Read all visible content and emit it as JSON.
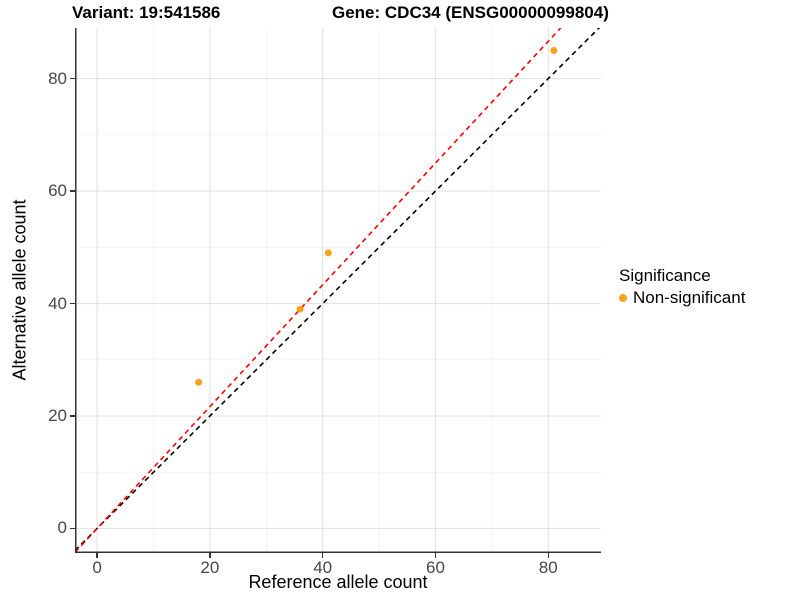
{
  "titles": {
    "variant": "Variant: 19:541586",
    "gene": "Gene: CDC34 (ENSG00000099804)"
  },
  "axes": {
    "x": {
      "label": "Reference allele count",
      "ticks": [
        "0",
        "20",
        "40",
        "60",
        "80"
      ],
      "tick_values": [
        0,
        20,
        40,
        60,
        80
      ],
      "minor": [
        10,
        30,
        50,
        70
      ]
    },
    "y": {
      "label": "Alternative allele count",
      "ticks": [
        "0",
        "20",
        "40",
        "60",
        "80"
      ],
      "tick_values": [
        0,
        20,
        40,
        60,
        80
      ],
      "minor": [
        10,
        30,
        50,
        70
      ]
    }
  },
  "legend": {
    "title": "Significance",
    "items": [
      {
        "label": "Non-significant",
        "color": "#FAA21B"
      }
    ]
  },
  "colors": {
    "point": "#FAA21B",
    "identity_line": "#000000",
    "fit_line": "#FF0000",
    "axis_line": "#333333",
    "major_grid": "#E3E3E3",
    "minor_grid": "#F1F1F1",
    "tick_text": "#474747"
  },
  "chart_data": {
    "type": "scatter",
    "title": "Variant: 19:541586   Gene: CDC34 (ENSG00000099804)",
    "xlabel": "Reference allele count",
    "ylabel": "Alternative allele count",
    "xlim": [
      -3.92,
      89.35
    ],
    "ylim": [
      -4.36,
      89.0
    ],
    "grid": true,
    "legend_position": "right",
    "points": [
      {
        "x": 18,
        "y": 26,
        "significance": "Non-significant"
      },
      {
        "x": 36,
        "y": 39,
        "significance": "Non-significant"
      },
      {
        "x": 41,
        "y": 49,
        "significance": "Non-significant"
      },
      {
        "x": 81,
        "y": 85,
        "significance": "Non-significant"
      }
    ],
    "point_radius_px": 3.5,
    "lines": [
      {
        "name": "identity",
        "slope": 1.0,
        "intercept": 0,
        "color": "#000000",
        "style": "dashed"
      },
      {
        "name": "fit",
        "slope": 1.083,
        "intercept": 0,
        "color": "#FF0000",
        "style": "dashed"
      }
    ]
  }
}
